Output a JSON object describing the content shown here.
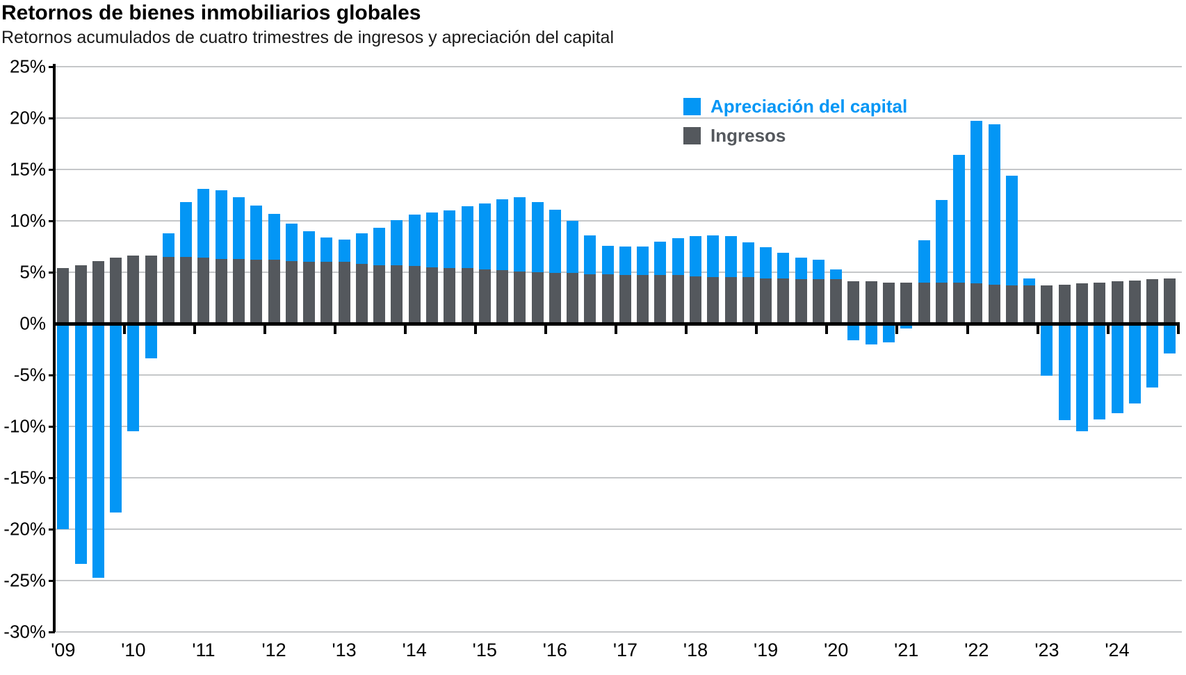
{
  "header": {
    "title": "Retornos de bienes inmobiliarios globales",
    "subtitle": "Retornos acumulados de cuatro trimestres de ingresos y apreciación del capital"
  },
  "colors": {
    "capital_blue": "#0396F5",
    "income_gray": "#54585D",
    "gridline": "#C5C7C9",
    "axis_black": "#000000",
    "background": "#FFFFFF"
  },
  "legend": {
    "items": [
      {
        "label": "Apreciación del capital",
        "color": "#0396F5"
      },
      {
        "label": "Ingresos",
        "color": "#54585D"
      }
    ]
  },
  "chart_data": {
    "type": "bar",
    "stacked": true,
    "title": "Retornos de bienes inmobiliarios globales",
    "subtitle": "Retornos acumulados de cuatro trimestres de ingresos y apreciación del capital",
    "xlabel": "",
    "ylabel": "",
    "ylim": [
      -30,
      25
    ],
    "y_tick_step": 5,
    "grid": true,
    "legend_position": "upper-middle-right",
    "y_tick_labels": [
      "25%",
      "20%",
      "15%",
      "10%",
      "5%",
      "0%",
      "-5%",
      "-10%",
      "-15%",
      "-20%",
      "-25%",
      "-30%"
    ],
    "y_tick_values": [
      25,
      20,
      15,
      10,
      5,
      0,
      -5,
      -10,
      -15,
      -20,
      -25,
      -30
    ],
    "x_year_labels": [
      "'09",
      "'10",
      "'11",
      "'12",
      "'13",
      "'14",
      "'15",
      "'16",
      "'17",
      "'18",
      "'19",
      "'20",
      "'21",
      "'22",
      "'23",
      "'24"
    ],
    "categories": [
      "2009 Q1",
      "2009 Q2",
      "2009 Q3",
      "2009 Q4",
      "2010 Q1",
      "2010 Q2",
      "2010 Q3",
      "2010 Q4",
      "2011 Q1",
      "2011 Q2",
      "2011 Q3",
      "2011 Q4",
      "2012 Q1",
      "2012 Q2",
      "2012 Q3",
      "2012 Q4",
      "2013 Q1",
      "2013 Q2",
      "2013 Q3",
      "2013 Q4",
      "2014 Q1",
      "2014 Q2",
      "2014 Q3",
      "2014 Q4",
      "2015 Q1",
      "2015 Q2",
      "2015 Q3",
      "2015 Q4",
      "2016 Q1",
      "2016 Q2",
      "2016 Q3",
      "2016 Q4",
      "2017 Q1",
      "2017 Q2",
      "2017 Q3",
      "2017 Q4",
      "2018 Q1",
      "2018 Q2",
      "2018 Q3",
      "2018 Q4",
      "2019 Q1",
      "2019 Q2",
      "2019 Q3",
      "2019 Q4",
      "2020 Q1",
      "2020 Q2",
      "2020 Q3",
      "2020 Q4",
      "2021 Q1",
      "2021 Q2",
      "2021 Q3",
      "2021 Q4",
      "2022 Q1",
      "2022 Q2",
      "2022 Q3",
      "2022 Q4",
      "2023 Q1",
      "2023 Q2",
      "2023 Q3",
      "2023 Q4",
      "2024 Q1",
      "2024 Q2",
      "2024 Q3",
      "2024 Q4"
    ],
    "series": [
      {
        "name": "Ingresos",
        "color": "#54585D",
        "values": [
          5.4,
          5.7,
          6.1,
          6.4,
          6.6,
          6.6,
          6.5,
          6.5,
          6.4,
          6.3,
          6.3,
          6.2,
          6.2,
          6.1,
          6.0,
          6.0,
          6.0,
          5.8,
          5.7,
          5.7,
          5.6,
          5.5,
          5.4,
          5.4,
          5.3,
          5.2,
          5.1,
          5.0,
          4.9,
          4.9,
          4.8,
          4.8,
          4.7,
          4.7,
          4.7,
          4.7,
          4.6,
          4.5,
          4.5,
          4.5,
          4.4,
          4.4,
          4.3,
          4.3,
          4.3,
          4.1,
          4.1,
          4.0,
          4.0,
          4.0,
          4.0,
          4.0,
          3.9,
          3.8,
          3.7,
          3.7,
          3.7,
          3.8,
          3.9,
          4.0,
          4.1,
          4.2,
          4.3,
          4.4
        ]
      },
      {
        "name": "Apreciación del capital",
        "color": "#0396F5",
        "values": [
          -20.0,
          -23.4,
          -24.7,
          -18.4,
          -10.5,
          -3.4,
          2.3,
          5.3,
          6.7,
          6.7,
          6.0,
          5.3,
          4.5,
          3.6,
          3.0,
          2.4,
          2.2,
          3.0,
          3.6,
          4.4,
          5.0,
          5.3,
          5.6,
          6.0,
          6.4,
          6.9,
          7.2,
          6.8,
          6.2,
          5.1,
          3.8,
          2.8,
          2.8,
          2.8,
          3.3,
          3.6,
          3.9,
          4.1,
          4.0,
          3.4,
          3.0,
          2.5,
          2.1,
          1.9,
          1.0,
          -1.6,
          -2.0,
          -1.8,
          -0.5,
          4.1,
          8.0,
          12.4,
          15.8,
          15.6,
          10.7,
          0.7,
          -5.1,
          -9.4,
          -10.5,
          -9.3,
          -8.7,
          -7.8,
          -6.2,
          -2.9
        ]
      }
    ]
  }
}
